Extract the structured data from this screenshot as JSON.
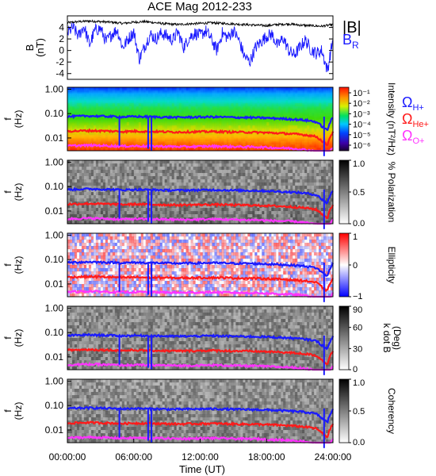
{
  "figure": {
    "title": "ACE Mag 2012-233",
    "x_axis_label": "Time (UT)",
    "x_tick_labels": [
      "00:00:00",
      "06:00:00",
      "12:00:00",
      "18:00:00",
      "24:00:00"
    ]
  },
  "colors": {
    "b_total": "#000000",
    "b_r": "#1a1aff",
    "h_plus": "#1a1aff",
    "he_plus": "#ff1a1a",
    "o_plus": "#ff33ff",
    "frame": "#000000"
  },
  "legends": {
    "b_total": "|B|",
    "b_r": "B",
    "b_r_sub": "R",
    "h_plus": "Ω",
    "h_plus_sub": "H+",
    "he_plus": "Ω",
    "he_plus_sub": "He+",
    "o_plus": "Ω",
    "o_plus_sub": "O+"
  },
  "chart_data": [
    {
      "type": "line",
      "panel": "magnetic-field",
      "ylabel": "B",
      "ylabel_unit": "(nT)",
      "x_range_hours": [
        0,
        24
      ],
      "ylim": [
        -5,
        6
      ],
      "y_tick_labels": [
        "4",
        "2",
        "0",
        "-2",
        "-4"
      ],
      "y_tick_values": [
        4,
        2,
        0,
        -2,
        -4
      ],
      "series": [
        {
          "name": "|B|",
          "x_hours": [
            0,
            1,
            2,
            3,
            4,
            5,
            6,
            7,
            8,
            9,
            10,
            11,
            12,
            13,
            14,
            15,
            16,
            17,
            18,
            19,
            20,
            21,
            22,
            23,
            24
          ],
          "values": [
            4.8,
            5.0,
            5.1,
            5.0,
            4.9,
            4.7,
            4.9,
            5.0,
            4.8,
            4.6,
            4.5,
            4.6,
            4.7,
            4.8,
            4.7,
            4.6,
            4.5,
            4.4,
            4.3,
            4.5,
            4.6,
            4.4,
            4.3,
            4.2,
            4.5
          ]
        },
        {
          "name": "B_R",
          "x_hours": [
            0,
            0.5,
            1,
            1.5,
            2,
            2.5,
            3,
            3.5,
            4,
            4.5,
            5,
            5.5,
            6,
            6.5,
            7,
            7.5,
            8,
            8.5,
            9,
            9.5,
            10,
            10.5,
            11,
            11.5,
            12,
            12.5,
            13,
            13.5,
            14,
            14.5,
            15,
            15.5,
            16,
            16.5,
            17,
            17.5,
            18,
            18.5,
            19,
            19.5,
            20,
            20.5,
            21,
            21.5,
            22,
            22.5,
            23,
            23.5,
            24
          ],
          "values": [
            3.0,
            4.0,
            2.5,
            4.2,
            1.0,
            3.5,
            3.8,
            1.5,
            2.8,
            3.6,
            0.5,
            2.0,
            3.2,
            -1.5,
            0.8,
            2.8,
            2.0,
            3.0,
            2.5,
            1.8,
            3.2,
            0.5,
            2.2,
            3.0,
            2.6,
            3.4,
            2.0,
            0.0,
            3.0,
            2.2,
            3.5,
            1.8,
            -1.0,
            -2.0,
            0.5,
            1.5,
            2.5,
            2.8,
            0.8,
            2.2,
            0.0,
            -0.8,
            0.5,
            1.8,
            0.2,
            -0.5,
            0.0,
            -3.5,
            2.0
          ]
        }
      ]
    },
    {
      "type": "heatmap",
      "panel": "intensity",
      "ylabel": "f",
      "ylabel_unit": "(Hz)",
      "y_scale": "log",
      "y_range_hz": [
        0.003,
        1.2
      ],
      "y_tick_labels": [
        "1.00",
        "0.10",
        "0.01"
      ],
      "y_tick_values": [
        1.0,
        0.1,
        0.01
      ],
      "colorbar": {
        "label": "Intensity (nT²/Hz)",
        "scale": "log",
        "tick_labels": [
          "10⁻¹",
          "10⁻²",
          "10⁻³",
          "10⁻⁴",
          "10⁻⁵",
          "10⁻⁶"
        ],
        "tick_values": [
          0.1,
          0.01,
          0.001,
          0.0001,
          1e-05,
          1e-06
        ],
        "palette": "rainbow"
      }
    },
    {
      "type": "heatmap",
      "panel": "polarization",
      "ylabel": "f",
      "ylabel_unit": "(Hz)",
      "y_scale": "log",
      "y_range_hz": [
        0.003,
        1.2
      ],
      "y_tick_labels": [
        "1.00",
        "0.10",
        "0.01"
      ],
      "y_tick_values": [
        1.0,
        0.1,
        0.01
      ],
      "colorbar": {
        "label": "% Polarization",
        "scale": "linear",
        "tick_labels": [
          "1.0",
          "0.5",
          "0.0"
        ],
        "tick_values": [
          1.0,
          0.5,
          0.0
        ],
        "palette": "gray"
      }
    },
    {
      "type": "heatmap",
      "panel": "ellipticity",
      "ylabel": "f",
      "ylabel_unit": "(Hz)",
      "y_scale": "log",
      "y_range_hz": [
        0.003,
        1.2
      ],
      "y_tick_labels": [
        "1.00",
        "0.10",
        "0.01"
      ],
      "y_tick_values": [
        1.0,
        0.1,
        0.01
      ],
      "colorbar": {
        "label": "Ellipticity",
        "scale": "linear",
        "tick_labels": [
          "1",
          "0",
          "−1"
        ],
        "tick_values": [
          1,
          0,
          -1
        ],
        "palette": "bwr"
      }
    },
    {
      "type": "heatmap",
      "panel": "k-dot-b",
      "ylabel": "f",
      "ylabel_unit": "(Hz)",
      "y_scale": "log",
      "y_range_hz": [
        0.003,
        1.2
      ],
      "y_tick_labels": [
        "1.00",
        "0.10",
        "0.01"
      ],
      "y_tick_values": [
        1.0,
        0.1,
        0.01
      ],
      "colorbar": {
        "label": "k dot B",
        "label_unit": "(Deg)",
        "scale": "linear",
        "tick_labels": [
          "90",
          "60",
          "30",
          "0"
        ],
        "tick_values": [
          90,
          60,
          30,
          0
        ],
        "palette": "gray"
      }
    },
    {
      "type": "heatmap",
      "panel": "coherency",
      "ylabel": "f",
      "ylabel_unit": "(Hz)",
      "y_scale": "log",
      "y_range_hz": [
        0.003,
        1.2
      ],
      "y_tick_labels": [
        "1.00",
        "0.10",
        "0.01"
      ],
      "y_tick_values": [
        1.0,
        0.1,
        0.01
      ],
      "colorbar": {
        "label": "Coherency",
        "scale": "linear",
        "tick_labels": [
          "1.0",
          "0.5",
          "0.0"
        ],
        "tick_values": [
          1.0,
          0.5,
          0.0
        ],
        "palette": "gray"
      }
    }
  ],
  "gyrofrequency_lines": {
    "x_hours": [
      0,
      1,
      2,
      3,
      4,
      5,
      5.5,
      6,
      6.5,
      7,
      8,
      9,
      10,
      11,
      12,
      13,
      14,
      15,
      16,
      17,
      18,
      19,
      20,
      21,
      22,
      22.5,
      23,
      23.5,
      24
    ],
    "h_plus_hz": [
      0.075,
      0.078,
      0.08,
      0.078,
      0.076,
      0.073,
      0.074,
      0.076,
      0.075,
      0.074,
      0.073,
      0.071,
      0.07,
      0.071,
      0.072,
      0.073,
      0.072,
      0.07,
      0.069,
      0.068,
      0.066,
      0.063,
      0.06,
      0.056,
      0.05,
      0.045,
      0.03,
      0.02,
      0.068
    ],
    "he_plus_hz": [
      0.019,
      0.0195,
      0.02,
      0.0195,
      0.019,
      0.0183,
      0.0185,
      0.019,
      0.0188,
      0.0185,
      0.0183,
      0.0178,
      0.0175,
      0.0178,
      0.018,
      0.0183,
      0.018,
      0.0175,
      0.0173,
      0.017,
      0.0165,
      0.0158,
      0.015,
      0.014,
      0.0125,
      0.0113,
      0.0075,
      0.005,
      0.017
    ],
    "o_plus_hz": [
      0.0047,
      0.0049,
      0.005,
      0.0049,
      0.0047,
      0.0046,
      0.0046,
      0.0047,
      0.0047,
      0.0046,
      0.0046,
      0.0045,
      0.0044,
      0.0044,
      0.0045,
      0.0046,
      0.0045,
      0.0044,
      0.0043,
      0.0043,
      0.0041,
      0.0039,
      0.0038,
      0.0035,
      0.0031,
      0.0028,
      0.0019,
      0.0013,
      0.0043
    ],
    "dips": [
      {
        "hour": 4.7,
        "hz": 0.04
      },
      {
        "hour": 7.3,
        "hz": 0.03
      },
      {
        "hour": 7.6,
        "hz": 0.025
      },
      {
        "hour": 23.2,
        "hz": 0.015
      }
    ]
  }
}
